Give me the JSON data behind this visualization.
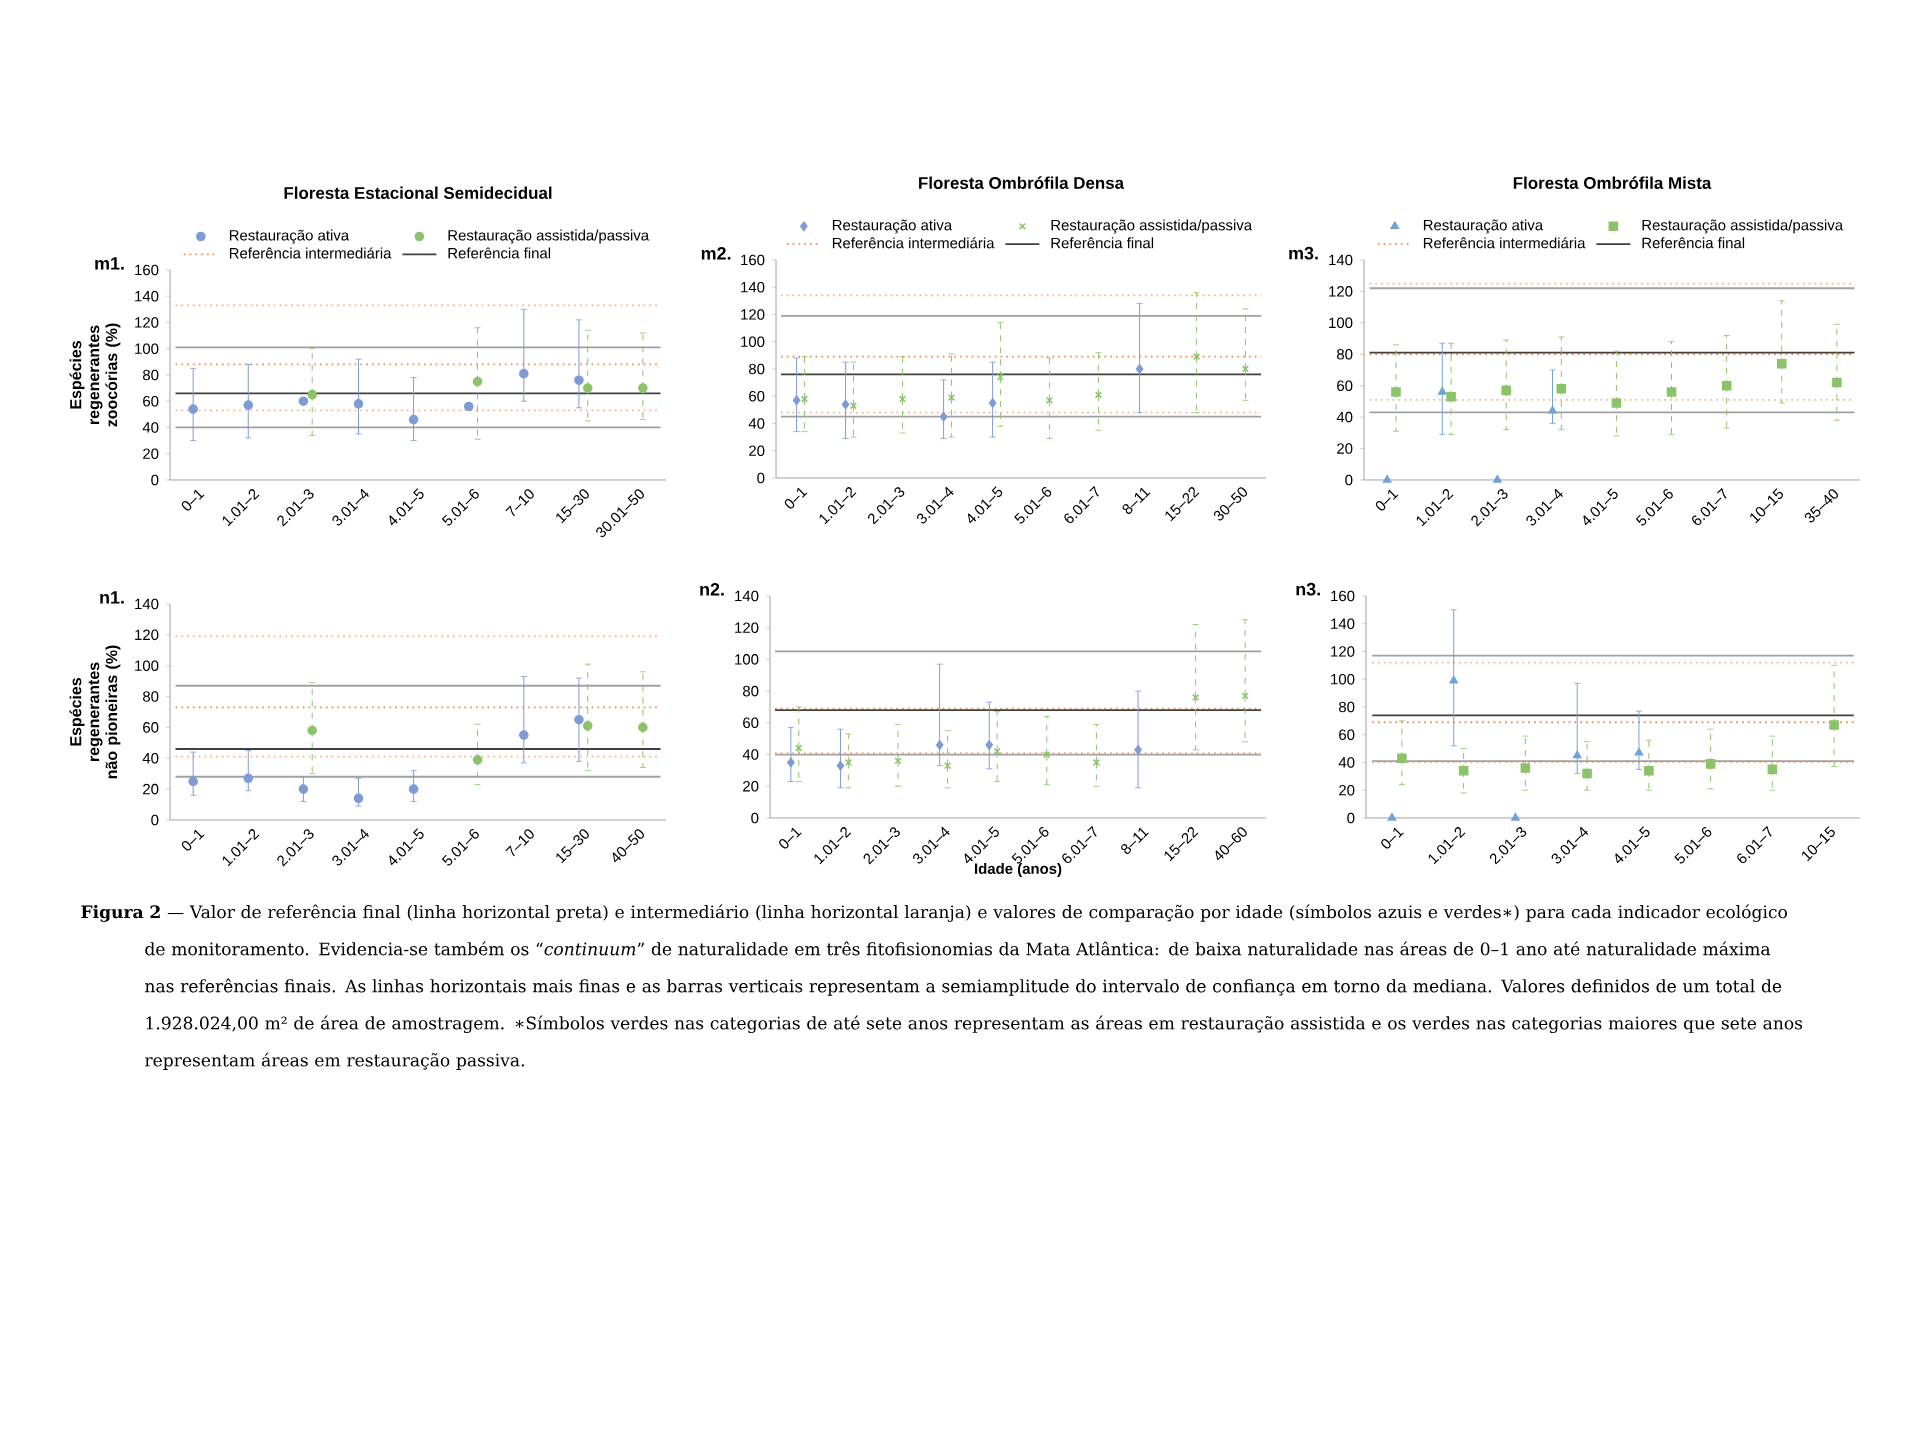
{
  "chart_data": [
    {
      "type": "scatter",
      "title": "Floresta Estacional Semidecidual",
      "ylabel": "Espécies regenerantes zoocórias (%)",
      "annotations": [
        "m1."
      ],
      "legend": "top",
      "categories": [
        "0–1",
        "1.01–2",
        "2.01–3",
        "3.01–4",
        "4.01–5",
        "5.01–6",
        "7–10",
        "15–30",
        "30.01–50"
      ],
      "ylim": [
        0,
        160
      ],
      "yticks": [
        0,
        20,
        40,
        60,
        80,
        100,
        120,
        140,
        160
      ],
      "series": [
        {
          "name": "Restauração ativa",
          "color": "#7f9bd4",
          "marker": "circle",
          "values": [
            54,
            57,
            60,
            58,
            46,
            56,
            81,
            76,
            null
          ],
          "errors": [
            [
              30,
              85
            ],
            [
              32,
              88
            ],
            null,
            [
              35,
              92
            ],
            [
              30,
              78
            ],
            null,
            [
              60,
              130
            ],
            [
              55,
              122
            ],
            null
          ]
        },
        {
          "name": "Restauração assistida/passiva",
          "color": "#8cc36a",
          "marker": "circle",
          "line_style": "dashed",
          "values": [
            null,
            null,
            65,
            null,
            null,
            75,
            null,
            70,
            70
          ],
          "errors": [
            null,
            null,
            [
              34,
              100
            ],
            null,
            null,
            [
              31,
              116
            ],
            null,
            [
              45,
              114
            ],
            [
              46,
              112
            ]
          ]
        }
      ],
      "ref_lines": [
        {
          "axis": "y",
          "value": 88,
          "color": "#f0905a",
          "line_style": "dotted",
          "label": "Referência intermediária"
        },
        {
          "axis": "y",
          "value": 66,
          "color": "#404040",
          "label": "Referência final"
        },
        {
          "axis": "y",
          "value": 53,
          "color": "#f5b58f",
          "line_style": "dotted"
        },
        {
          "axis": "y",
          "value": 133,
          "color": "#f5b58f",
          "line_style": "dotted"
        },
        {
          "axis": "y",
          "value": 40,
          "color": "#a0a0a0"
        },
        {
          "axis": "y",
          "value": 101,
          "color": "#a0a0a0"
        }
      ]
    },
    {
      "type": "scatter",
      "title": "Floresta Ombrófila Densa",
      "annotations": [
        "m2."
      ],
      "legend": "top",
      "categories": [
        "0–1",
        "1.01–2",
        "2.01–3",
        "3.01–4",
        "4.01–5",
        "5.01–6",
        "6.01–7",
        "8–11",
        "15–22",
        "30–50"
      ],
      "ylim": [
        0,
        160
      ],
      "yticks": [
        0,
        20,
        40,
        60,
        80,
        100,
        120,
        140,
        160
      ],
      "series": [
        {
          "name": "Restauração ativa",
          "color": "#7f9bd4",
          "marker": "diamond",
          "values": [
            57,
            54,
            null,
            45,
            55,
            null,
            null,
            80,
            null,
            null
          ],
          "errors": [
            [
              34,
              88
            ],
            [
              29,
              85
            ],
            null,
            [
              29,
              72
            ],
            [
              30,
              85
            ],
            null,
            null,
            [
              48,
              128
            ],
            null,
            null
          ]
        },
        {
          "name": "Restauração assistida/passiva",
          "color": "#8cc36a",
          "marker": "cross",
          "line_style": "dashed",
          "values": [
            58,
            53,
            58,
            59,
            74,
            57,
            61,
            null,
            89,
            80
          ],
          "errors": [
            [
              34,
              89
            ],
            [
              30,
              85
            ],
            [
              33,
              89
            ],
            [
              30,
              91
            ],
            [
              38,
              114
            ],
            [
              29,
              88
            ],
            [
              35,
              92
            ],
            null,
            [
              48,
              136
            ],
            [
              57,
              124
            ]
          ]
        }
      ],
      "ref_lines": [
        {
          "axis": "y",
          "value": 89,
          "color": "#f0905a",
          "line_style": "dotted",
          "label": "Referência intermediária"
        },
        {
          "axis": "y",
          "value": 76,
          "color": "#404040",
          "label": "Referência final"
        },
        {
          "axis": "y",
          "value": 48,
          "color": "#f5b58f",
          "line_style": "dotted"
        },
        {
          "axis": "y",
          "value": 134,
          "color": "#f5b58f",
          "line_style": "dotted"
        },
        {
          "axis": "y",
          "value": 45,
          "color": "#a0a0a0"
        },
        {
          "axis": "y",
          "value": 119,
          "color": "#a0a0a0"
        }
      ]
    },
    {
      "type": "scatter",
      "title": "Floresta Ombrófila Mista",
      "annotations": [
        "m3."
      ],
      "legend": "top",
      "categories": [
        "0–1",
        "1.01–2",
        "2.01–3",
        "3.01–4",
        "4.01–5",
        "5.01–6",
        "6.01–7",
        "10–15",
        "35–40"
      ],
      "ylim": [
        0,
        140
      ],
      "yticks": [
        0,
        20,
        40,
        60,
        80,
        100,
        120,
        140
      ],
      "series": [
        {
          "name": "Restauração ativa",
          "color": "#6fa3d8",
          "marker": "triangle",
          "values": [
            0,
            56,
            0,
            44,
            null,
            null,
            null,
            null,
            null
          ],
          "errors": [
            null,
            [
              29,
              87
            ],
            null,
            [
              36,
              70
            ],
            null,
            null,
            null,
            null,
            null
          ]
        },
        {
          "name": "Restauração assistida/passiva",
          "color": "#8cc36a",
          "marker": "square",
          "line_style": "dashed",
          "values": [
            56,
            53,
            57,
            58,
            49,
            56,
            60,
            74,
            62
          ],
          "errors": [
            [
              31,
              86
            ],
            [
              29,
              87
            ],
            [
              32,
              89
            ],
            [
              32,
              91
            ],
            [
              28,
              82
            ],
            [
              29,
              88
            ],
            [
              33,
              92
            ],
            [
              49,
              114
            ],
            [
              38,
              99
            ]
          ]
        }
      ],
      "ref_lines": [
        {
          "axis": "y",
          "value": 80,
          "color": "#f0905a",
          "line_style": "dotted",
          "label": "Referência intermediária"
        },
        {
          "axis": "y",
          "value": 81,
          "color": "#404040",
          "label": "Referência final"
        },
        {
          "axis": "y",
          "value": 51,
          "color": "#f5b58f",
          "line_style": "dotted"
        },
        {
          "axis": "y",
          "value": 125,
          "color": "#f5b58f",
          "line_style": "dotted"
        },
        {
          "axis": "y",
          "value": 43,
          "color": "#a0a0a0"
        },
        {
          "axis": "y",
          "value": 122,
          "color": "#a0a0a0"
        }
      ]
    },
    {
      "type": "scatter",
      "ylabel": "Espécies regenerantes não pioneiras (%)",
      "annotations": [
        "n1."
      ],
      "categories": [
        "0–1",
        "1.01–2",
        "2.01–3",
        "3.01–4",
        "4.01–5",
        "5.01–6",
        "7–10",
        "15–30",
        "40–50"
      ],
      "ylim": [
        0,
        140
      ],
      "yticks": [
        0,
        20,
        40,
        60,
        80,
        100,
        120,
        140
      ],
      "series": [
        {
          "color": "#7f9bd4",
          "marker": "circle",
          "values": [
            25,
            27,
            20,
            14,
            20,
            null,
            55,
            65,
            null
          ],
          "errors": [
            [
              16,
              44
            ],
            [
              19,
              45
            ],
            [
              12,
              28
            ],
            [
              9,
              27
            ],
            [
              12,
              32
            ],
            null,
            [
              37,
              93
            ],
            [
              38,
              92
            ],
            null
          ]
        },
        {
          "color": "#8cc36a",
          "marker": "circle",
          "line_style": "dashed",
          "values": [
            null,
            null,
            58,
            null,
            null,
            39,
            null,
            61,
            60
          ],
          "errors": [
            null,
            null,
            [
              30,
              89
            ],
            null,
            null,
            [
              23,
              62
            ],
            null,
            [
              32,
              101
            ],
            [
              34,
              96
            ]
          ]
        }
      ],
      "ref_lines": [
        {
          "axis": "y",
          "value": 73,
          "color": "#f0905a",
          "line_style": "dotted"
        },
        {
          "axis": "y",
          "value": 46,
          "color": "#404040"
        },
        {
          "axis": "y",
          "value": 41,
          "color": "#f5b58f",
          "line_style": "dotted"
        },
        {
          "axis": "y",
          "value": 119,
          "color": "#f5b58f",
          "line_style": "dotted"
        },
        {
          "axis": "y",
          "value": 28,
          "color": "#a0a0a0"
        },
        {
          "axis": "y",
          "value": 87,
          "color": "#a0a0a0"
        }
      ]
    },
    {
      "type": "scatter",
      "xlabel": "Idade (anos)",
      "annotations": [
        "n2."
      ],
      "categories": [
        "0–1",
        "1.01–2",
        "2.01–3",
        "3.01–4",
        "4.01–5",
        "5.01–6",
        "6.01–7",
        "8–11",
        "15–22",
        "40–60"
      ],
      "ylim": [
        0,
        140
      ],
      "yticks": [
        0,
        20,
        40,
        60,
        80,
        100,
        120,
        140
      ],
      "series": [
        {
          "color": "#7f9bd4",
          "marker": "diamond",
          "values": [
            35,
            33,
            null,
            46,
            46,
            null,
            null,
            43,
            null,
            null
          ],
          "errors": [
            [
              23,
              57
            ],
            [
              19,
              56
            ],
            null,
            [
              33,
              97
            ],
            [
              31,
              73
            ],
            null,
            null,
            [
              19,
              80
            ],
            null,
            null
          ]
        },
        {
          "color": "#8cc36a",
          "marker": "cross",
          "line_style": "dashed",
          "values": [
            44,
            35,
            36,
            33,
            42,
            40,
            35,
            null,
            76,
            77
          ],
          "errors": [
            [
              23,
              70
            ],
            [
              19,
              53
            ],
            [
              20,
              59
            ],
            [
              19,
              55
            ],
            [
              23,
              67
            ],
            [
              21,
              64
            ],
            [
              20,
              59
            ],
            null,
            [
              43,
              122
            ],
            [
              48,
              125
            ]
          ]
        }
      ],
      "ref_lines": [
        {
          "axis": "y",
          "value": 69,
          "color": "#f0905a",
          "line_style": "dotted"
        },
        {
          "axis": "y",
          "value": 68,
          "color": "#404040"
        },
        {
          "axis": "y",
          "value": 41,
          "color": "#f5b58f",
          "line_style": "dotted"
        },
        {
          "axis": "y",
          "value": 40,
          "color": "#a0a0a0"
        },
        {
          "axis": "y",
          "value": 105,
          "color": "#a0a0a0"
        }
      ]
    },
    {
      "type": "scatter",
      "annotations": [
        "n3.",
        "**Figura 2** — Valor de referência final (linha horizontal preta) e intermediário (linha horizontal laranja) e valores de comparação por idade (símbolos azuis e verdes∗) para cada indicador ecológico de monitoramento. Evidencia-se também os “*continuum*” de naturalidade em três fitofisionomias da Mata Atlântica: de baixa naturalidade nas áreas de 0–1 ano até naturalidade máxima nas referências finais. As linhas horizontais mais finas e as barras verticais representam a semiamplitude do intervalo de confiança em torno da mediana. Valores definidos de um total de 1.928.024,00 m² de área de amostragem. ∗Símbolos verdes nas categorias de até sete anos representam as áreas em restauração assistida e os verdes nas categorias maiores que sete anos representam áreas em restauração passiva."
      ],
      "categories": [
        "0–1",
        "1.01–2",
        "2.01–3",
        "3.01–4",
        "4.01–5",
        "5.01–6",
        "6.01–7",
        "10–15"
      ],
      "ylim": [
        0,
        160
      ],
      "yticks": [
        0,
        20,
        40,
        60,
        80,
        100,
        120,
        140,
        160
      ],
      "series": [
        {
          "color": "#6fa3d8",
          "marker": "triangle",
          "values": [
            0,
            99,
            0,
            45,
            47,
            null,
            null,
            null
          ],
          "errors": [
            null,
            [
              52,
              150
            ],
            null,
            [
              32,
              97
            ],
            [
              35,
              77
            ],
            null,
            null,
            null
          ]
        },
        {
          "color": "#8cc36a",
          "marker": "square",
          "line_style": "dashed",
          "values": [
            43,
            34,
            36,
            32,
            34,
            39,
            35,
            67
          ],
          "errors": [
            [
              24,
              70
            ],
            [
              18,
              50
            ],
            [
              20,
              59
            ],
            [
              20,
              55
            ],
            [
              20,
              56
            ],
            [
              21,
              64
            ],
            [
              20,
              59
            ],
            [
              37,
              110
            ]
          ]
        }
      ],
      "ref_lines": [
        {
          "axis": "y",
          "value": 69,
          "color": "#f0905a",
          "line_style": "dotted"
        },
        {
          "axis": "y",
          "value": 74,
          "color": "#404040"
        },
        {
          "axis": "y",
          "value": 40,
          "color": "#f5b58f",
          "line_style": "dotted"
        },
        {
          "axis": "y",
          "value": 112,
          "color": "#f5b58f",
          "line_style": "dotted"
        },
        {
          "axis": "y",
          "value": 41,
          "color": "#a0a0a0"
        },
        {
          "axis": "y",
          "value": 117,
          "color": "#a0a0a0"
        }
      ]
    }
  ]
}
